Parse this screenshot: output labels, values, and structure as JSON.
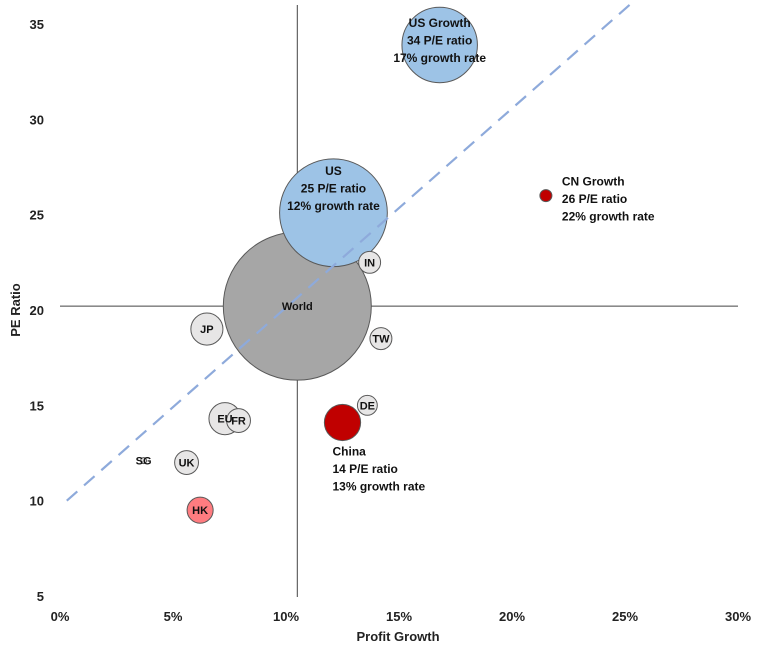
{
  "chart_data": {
    "type": "scatter",
    "subtype": "bubble",
    "title": "",
    "xlabel": "Profit Growth",
    "ylabel": "PE Ratio",
    "xlim": [
      0,
      30
    ],
    "ylim": [
      5,
      35
    ],
    "x_ticks": [
      "0%",
      "5%",
      "10%",
      "15%",
      "20%",
      "25%",
      "30%"
    ],
    "y_ticks": [
      "5",
      "10",
      "15",
      "20",
      "25",
      "30",
      "35"
    ],
    "grid": false,
    "legend": "none",
    "reference_lines": {
      "vertical_x": 10.5,
      "horizontal_y": 20.2
    },
    "trendline": {
      "style": "dashed",
      "color": "#8eaadb",
      "from": [
        0.3,
        10.0
      ],
      "to": [
        25.2,
        36.0
      ]
    },
    "points": [
      {
        "label": "US Growth",
        "lines": [
          "US Growth",
          "34 P/E ratio",
          "17% growth rate"
        ],
        "x": 16.8,
        "y": 33.9,
        "size": 26,
        "color": "#9dc3e6"
      },
      {
        "label": "US",
        "lines": [
          "US",
          "25 P/E ratio",
          "12% growth rate"
        ],
        "x": 12.1,
        "y": 25.1,
        "size": 53,
        "color": "#9dc3e6"
      },
      {
        "label": "World",
        "x": 10.5,
        "y": 20.2,
        "size": 100,
        "color": "#a6a6a6"
      },
      {
        "label": "CN Growth",
        "lines": [
          "CN Growth",
          "26 P/E ratio",
          "22% growth rate"
        ],
        "x": 21.5,
        "y": 26.0,
        "size": 0.66,
        "color": "#c00000"
      },
      {
        "label": "IN",
        "x": 13.7,
        "y": 22.5,
        "size": 2.2,
        "color": "#e7e6e6"
      },
      {
        "label": "JP",
        "x": 6.5,
        "y": 19.0,
        "size": 4.7,
        "color": "#e7e6e6"
      },
      {
        "label": "TW",
        "x": 14.2,
        "y": 18.5,
        "size": 2.2,
        "color": "#e7e6e6"
      },
      {
        "label": "DE",
        "x": 13.6,
        "y": 15.0,
        "size": 1.8,
        "color": "#e7e6e6"
      },
      {
        "label": "China",
        "lines": [
          "China",
          "14 P/E ratio",
          "13% growth rate"
        ],
        "x": 12.5,
        "y": 14.1,
        "size": 6,
        "color": "#c00000"
      },
      {
        "label": "EU",
        "x": 7.3,
        "y": 14.3,
        "size": 4.7,
        "color": "#e7e6e6"
      },
      {
        "label": "FR",
        "x": 7.9,
        "y": 14.2,
        "size": 2.6,
        "color": "#e7e6e6"
      },
      {
        "label": "UK",
        "x": 5.6,
        "y": 12.0,
        "size": 2.6,
        "color": "#e7e6e6"
      },
      {
        "label": "SG",
        "x": 3.7,
        "y": 12.1,
        "size": 0.16,
        "color": "#e7e6e6"
      },
      {
        "label": "HK",
        "x": 6.2,
        "y": 9.5,
        "size": 3.1,
        "color": "#ff7c80"
      }
    ]
  }
}
